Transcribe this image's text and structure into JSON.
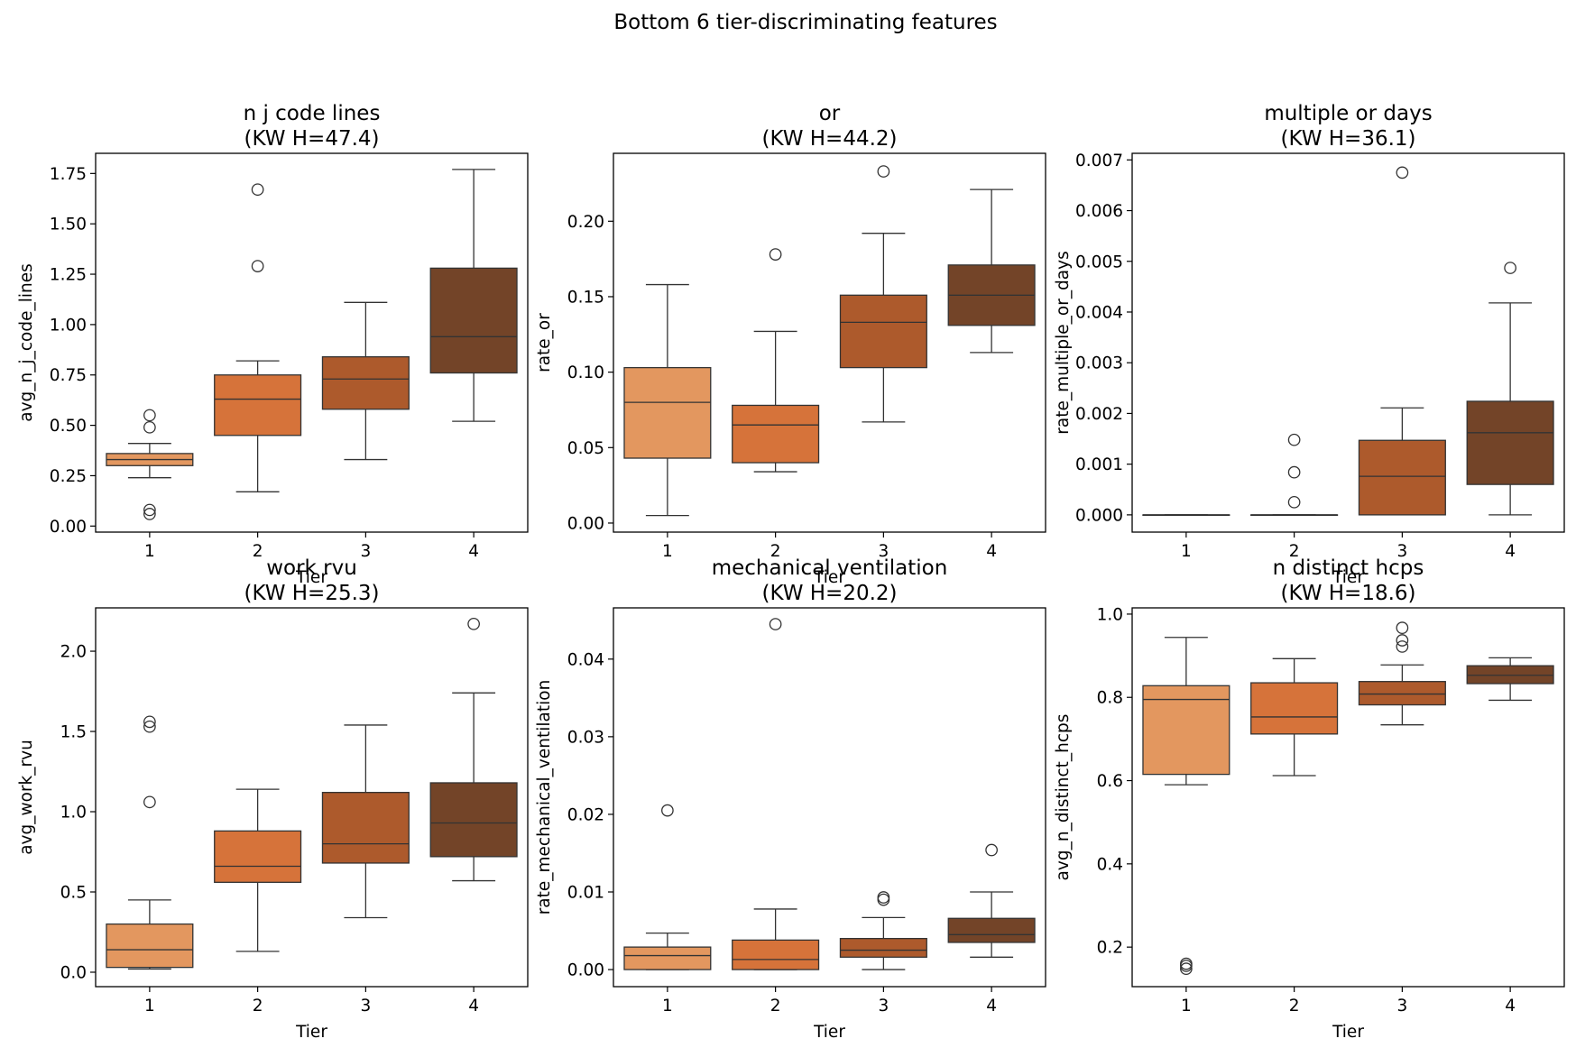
{
  "figure": {
    "suptitle": "Bottom 6 tier-discriminating features",
    "colors": [
      "#e3975f",
      "#d6733a",
      "#ad5a2c",
      "#734428"
    ],
    "line_color": "#333333"
  },
  "chart_data": [
    {
      "type": "box",
      "title_line1": "n j code lines",
      "title_line2": "(KW H=47.4)",
      "xlabel": "Tier",
      "ylabel": "avg_n_j_code_lines",
      "categories": [
        "1",
        "2",
        "3",
        "4"
      ],
      "ylim": [
        -0.03,
        1.85
      ],
      "yticks": [
        0.0,
        0.25,
        0.5,
        0.75,
        1.0,
        1.25,
        1.5,
        1.75
      ],
      "ytick_labels": [
        "0.00",
        "0.25",
        "0.50",
        "0.75",
        "1.00",
        "1.25",
        "1.50",
        "1.75"
      ],
      "boxes": [
        {
          "whisker_low": 0.24,
          "q1": 0.3,
          "median": 0.33,
          "q3": 0.36,
          "whisker_high": 0.41,
          "outliers": [
            0.55,
            0.49,
            0.08,
            0.06
          ]
        },
        {
          "whisker_low": 0.17,
          "q1": 0.45,
          "median": 0.63,
          "q3": 0.75,
          "whisker_high": 0.82,
          "outliers": [
            1.67,
            1.29
          ]
        },
        {
          "whisker_low": 0.33,
          "q1": 0.58,
          "median": 0.73,
          "q3": 0.84,
          "whisker_high": 1.11,
          "outliers": []
        },
        {
          "whisker_low": 0.52,
          "q1": 0.76,
          "median": 0.94,
          "q3": 1.28,
          "whisker_high": 1.77,
          "outliers": []
        }
      ]
    },
    {
      "type": "box",
      "title_line1": "or",
      "title_line2": "(KW H=44.2)",
      "xlabel": "Tier",
      "ylabel": "rate_or",
      "categories": [
        "1",
        "2",
        "3",
        "4"
      ],
      "ylim": [
        -0.006,
        0.245
      ],
      "yticks": [
        0.0,
        0.05,
        0.1,
        0.15,
        0.2
      ],
      "ytick_labels": [
        "0.00",
        "0.05",
        "0.10",
        "0.15",
        "0.20"
      ],
      "boxes": [
        {
          "whisker_low": 0.005,
          "q1": 0.043,
          "median": 0.08,
          "q3": 0.103,
          "whisker_high": 0.158,
          "outliers": []
        },
        {
          "whisker_low": 0.034,
          "q1": 0.04,
          "median": 0.065,
          "q3": 0.078,
          "whisker_high": 0.127,
          "outliers": [
            0.178
          ]
        },
        {
          "whisker_low": 0.067,
          "q1": 0.103,
          "median": 0.133,
          "q3": 0.151,
          "whisker_high": 0.192,
          "outliers": [
            0.233
          ]
        },
        {
          "whisker_low": 0.113,
          "q1": 0.131,
          "median": 0.151,
          "q3": 0.171,
          "whisker_high": 0.221,
          "outliers": []
        }
      ]
    },
    {
      "type": "box",
      "title_line1": "multiple or days",
      "title_line2": "(KW H=36.1)",
      "xlabel": "Tier",
      "ylabel": "rate_multiple_or_days",
      "categories": [
        "1",
        "2",
        "3",
        "4"
      ],
      "ylim": [
        -0.00034,
        0.00713
      ],
      "yticks": [
        0.0,
        0.001,
        0.002,
        0.003,
        0.004,
        0.005,
        0.006,
        0.007
      ],
      "ytick_labels": [
        "0.000",
        "0.001",
        "0.002",
        "0.003",
        "0.004",
        "0.005",
        "0.006",
        "0.007"
      ],
      "boxes": [
        {
          "whisker_low": 0.0,
          "q1": 0.0,
          "median": 0.0,
          "q3": 0.0,
          "whisker_high": 0.0,
          "outliers": []
        },
        {
          "whisker_low": 0.0,
          "q1": 0.0,
          "median": 0.0,
          "q3": 0.0,
          "whisker_high": 0.0,
          "outliers": [
            0.00148,
            0.00084,
            0.00025
          ]
        },
        {
          "whisker_low": 0.0,
          "q1": 0.0,
          "median": 0.00076,
          "q3": 0.00147,
          "whisker_high": 0.00211,
          "outliers": [
            0.00675
          ]
        },
        {
          "whisker_low": 0.0,
          "q1": 0.0006,
          "median": 0.00162,
          "q3": 0.00224,
          "whisker_high": 0.00418,
          "outliers": [
            0.00487
          ]
        }
      ]
    },
    {
      "type": "box",
      "title_line1": "work rvu",
      "title_line2": "(KW H=25.3)",
      "xlabel": "Tier",
      "ylabel": "avg_work_rvu",
      "categories": [
        "1",
        "2",
        "3",
        "4"
      ],
      "ylim": [
        -0.09,
        2.27
      ],
      "yticks": [
        0.0,
        0.5,
        1.0,
        1.5,
        2.0
      ],
      "ytick_labels": [
        "0.0",
        "0.5",
        "1.0",
        "1.5",
        "2.0"
      ],
      "boxes": [
        {
          "whisker_low": 0.02,
          "q1": 0.03,
          "median": 0.14,
          "q3": 0.3,
          "whisker_high": 0.45,
          "outliers": [
            1.56,
            1.53,
            1.06
          ]
        },
        {
          "whisker_low": 0.13,
          "q1": 0.56,
          "median": 0.66,
          "q3": 0.88,
          "whisker_high": 1.14,
          "outliers": []
        },
        {
          "whisker_low": 0.34,
          "q1": 0.68,
          "median": 0.8,
          "q3": 1.12,
          "whisker_high": 1.54,
          "outliers": []
        },
        {
          "whisker_low": 0.57,
          "q1": 0.72,
          "median": 0.93,
          "q3": 1.18,
          "whisker_high": 1.74,
          "outliers": [
            2.17
          ]
        }
      ]
    },
    {
      "type": "box",
      "title_line1": "mechanical ventilation",
      "title_line2": "(KW H=20.2)",
      "xlabel": "Tier",
      "ylabel": "rate_mechanical_ventilation",
      "categories": [
        "1",
        "2",
        "3",
        "4"
      ],
      "ylim": [
        -0.0022,
        0.0466
      ],
      "yticks": [
        0.0,
        0.01,
        0.02,
        0.03,
        0.04
      ],
      "ytick_labels": [
        "0.00",
        "0.01",
        "0.02",
        "0.03",
        "0.04"
      ],
      "boxes": [
        {
          "whisker_low": 0.0,
          "q1": 0.0,
          "median": 0.0018,
          "q3": 0.0029,
          "whisker_high": 0.0047,
          "outliers": [
            0.0205
          ]
        },
        {
          "whisker_low": 0.0,
          "q1": 0.0,
          "median": 0.0013,
          "q3": 0.0038,
          "whisker_high": 0.0078,
          "outliers": [
            0.0445
          ]
        },
        {
          "whisker_low": 0.0,
          "q1": 0.0016,
          "median": 0.0025,
          "q3": 0.004,
          "whisker_high": 0.0067,
          "outliers": [
            0.0093,
            0.009
          ]
        },
        {
          "whisker_low": 0.0016,
          "q1": 0.0035,
          "median": 0.0045,
          "q3": 0.0066,
          "whisker_high": 0.01,
          "outliers": [
            0.0154
          ]
        }
      ]
    },
    {
      "type": "box",
      "title_line1": "n distinct hcps",
      "title_line2": "(KW H=18.6)",
      "xlabel": "Tier",
      "ylabel": "avg_n_distinct_hcps",
      "categories": [
        "1",
        "2",
        "3",
        "4"
      ],
      "ylim": [
        0.105,
        1.015
      ],
      "yticks": [
        0.2,
        0.4,
        0.6,
        0.8,
        1.0
      ],
      "ytick_labels": [
        "0.2",
        "0.4",
        "0.6",
        "0.8",
        "1.0"
      ],
      "boxes": [
        {
          "whisker_low": 0.59,
          "q1": 0.615,
          "median": 0.795,
          "q3": 0.828,
          "whisker_high": 0.944,
          "outliers": [
            0.16,
            0.155,
            0.148
          ]
        },
        {
          "whisker_low": 0.612,
          "q1": 0.712,
          "median": 0.753,
          "q3": 0.835,
          "whisker_high": 0.893,
          "outliers": []
        },
        {
          "whisker_low": 0.734,
          "q1": 0.782,
          "median": 0.808,
          "q3": 0.838,
          "whisker_high": 0.878,
          "outliers": [
            0.967,
            0.937,
            0.922
          ]
        },
        {
          "whisker_low": 0.793,
          "q1": 0.833,
          "median": 0.853,
          "q3": 0.876,
          "whisker_high": 0.895,
          "outliers": []
        }
      ]
    }
  ]
}
